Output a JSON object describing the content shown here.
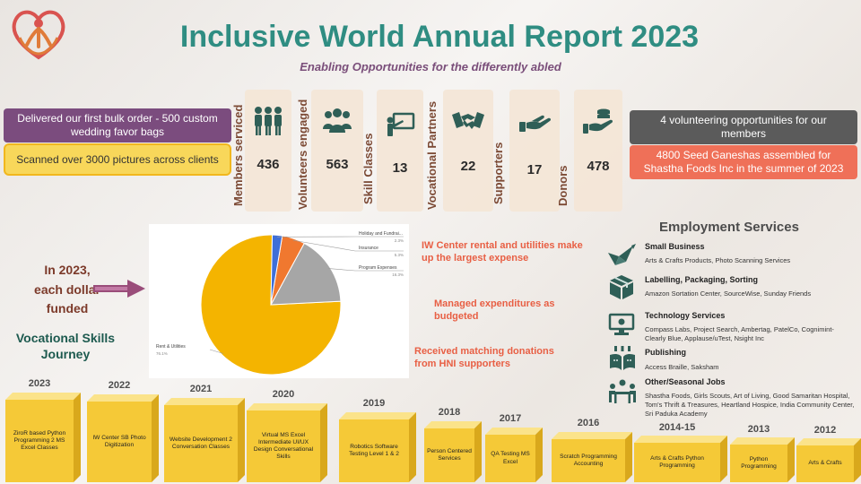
{
  "header": {
    "title": "Inclusive World Annual Report 2023",
    "subtitle": "Enabling Opportunities for the differently abled"
  },
  "callouts": {
    "left_top": "Delivered our first bulk order - 500 custom wedding favor bags",
    "left_bottom": "Scanned over 3000 pictures across clients",
    "right_top": "4 volunteering opportunities for our members",
    "right_bottom": "4800 Seed Ganeshas assembled for Shastha Foods Inc in the summer of 2023"
  },
  "stats": [
    {
      "label": "Members serviced",
      "value": "436",
      "icon": "people-group-icon"
    },
    {
      "label": "Volunteers engaged",
      "value": "563",
      "icon": "volunteers-icon"
    },
    {
      "label": "Skill Classes",
      "value": "13",
      "icon": "teacher-board-icon"
    },
    {
      "label": "Vocational Partners",
      "value": "22",
      "icon": "handshake-icon"
    },
    {
      "label": "Supporters",
      "value": "17",
      "icon": "supporting-hand-icon"
    },
    {
      "label": "Donors",
      "value": "478",
      "icon": "donation-coins-icon"
    }
  ],
  "funding": {
    "lead": "In 2023, each dollar funded",
    "lead_lines": [
      "In 2023,",
      "each dollar",
      "funded"
    ],
    "notes": [
      "IW Center rental and utilities make up the largest expense",
      "Managed expenditures as budgeted",
      "Received matching donations from HNI supporters"
    ]
  },
  "chart_data": {
    "type": "pie",
    "slices": [
      {
        "label": "Rent & Utilities",
        "value": 76.1,
        "display": "76.1%",
        "color": "#f4b400"
      },
      {
        "label": "Program Expenses",
        "value": 16.3,
        "display": "16.3%",
        "color": "#a6a6a6"
      },
      {
        "label": "Insurance",
        "value": 5.3,
        "display": "5.3%",
        "color": "#f0782f"
      },
      {
        "label": "Holiday and Fundrai...",
        "value": 2.3,
        "display": "2.3%",
        "color": "#3f6fd8"
      }
    ],
    "legend": "callout-labels"
  },
  "employment": {
    "title": "Employment Services",
    "categories": [
      {
        "name": "Small Business",
        "desc": "Arts & Crafts Products, Photo Scanning Services",
        "icon": "origami-bird-icon"
      },
      {
        "name": "Labelling, Packaging, Sorting",
        "desc": "Amazon Sortation Center, SourceWise, Sunday Friends",
        "icon": "package-box-icon"
      },
      {
        "name": "Technology Services",
        "desc": "Compass Labs, Project Search,  Ambertag, PatelCo, Cognimint-Clearly Blue, Applause/uTest, Nsight Inc",
        "icon": "computer-monitor-icon"
      },
      {
        "name": "Publishing",
        "desc": "Access Braille,  Saksham",
        "icon": "open-book-icon"
      },
      {
        "name": "Other/Seasonal Jobs",
        "desc": "Shastha Foods, Girls Scouts, Art of Living, Good Samaritan Hospital, Tom's Thrift & Treasures, Heartland Hospice, India Community Center, Sri Paduka Academy",
        "icon": "team-meeting-icon"
      }
    ]
  },
  "journey": {
    "title": "Vocational Skills Journey",
    "title_lines": [
      "Vocational Skills",
      "Journey"
    ],
    "years": [
      {
        "year": "2023",
        "text": "ZiroR  based Python Programming 2 MS Excel Classes"
      },
      {
        "year": "2022",
        "text": "IW Center SB Photo Digitization"
      },
      {
        "year": "2021",
        "text": "Website Development 2 Conversation Classes"
      },
      {
        "year": "2020",
        "text": "Virtual MS Excel Intermediate UI/UX Design Conversational Skills"
      },
      {
        "year": "2019",
        "text": "Robotics Software Testing Level 1 & 2"
      },
      {
        "year": "2018",
        "text": "Person Centered Services"
      },
      {
        "year": "2017",
        "text": "QA Testing MS Excel"
      },
      {
        "year": "2016",
        "text": "Scratch Programming Accounting"
      },
      {
        "year": "2014-15",
        "text": "Arts & Crafts Python Programming"
      },
      {
        "year": "2013",
        "text": "Python Programming"
      },
      {
        "year": "2012",
        "text": "Arts & Crafts"
      }
    ]
  },
  "colors": {
    "teal": "#2f8d82",
    "purple": "#7b4c7e",
    "yellow": "#f8d75a",
    "coral": "#ef7058",
    "gray": "#5b5b5b",
    "gold": "#f4b400"
  }
}
